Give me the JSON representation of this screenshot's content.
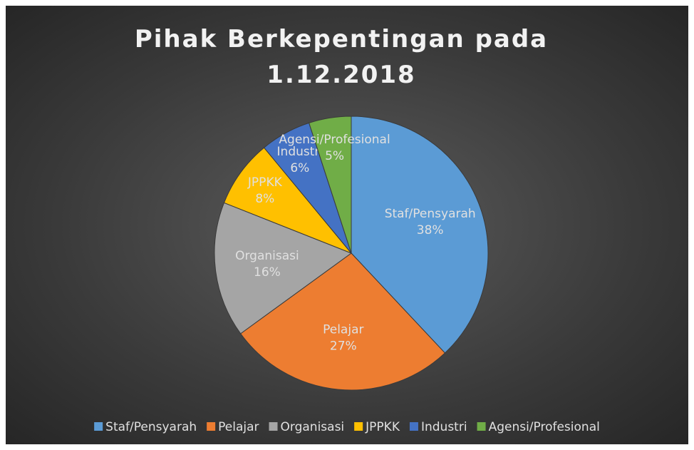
{
  "chart_data": {
    "type": "pie",
    "title": "Pihak Berkepentingan pada 1.12.2018",
    "categories": [
      "Staf/Pensyarah",
      "Pelajar",
      "Organisasi",
      "JPPKK",
      "Industri",
      "Agensi/Profesional"
    ],
    "values": [
      38,
      27,
      16,
      8,
      6,
      5
    ],
    "value_labels": [
      "38%",
      "27%",
      "16%",
      "8%",
      "6%",
      "5%"
    ],
    "colors": [
      "#5b9bd5",
      "#ed7d31",
      "#a5a5a5",
      "#ffc000",
      "#4472c4",
      "#70ad47"
    ],
    "legend": "bottom"
  }
}
